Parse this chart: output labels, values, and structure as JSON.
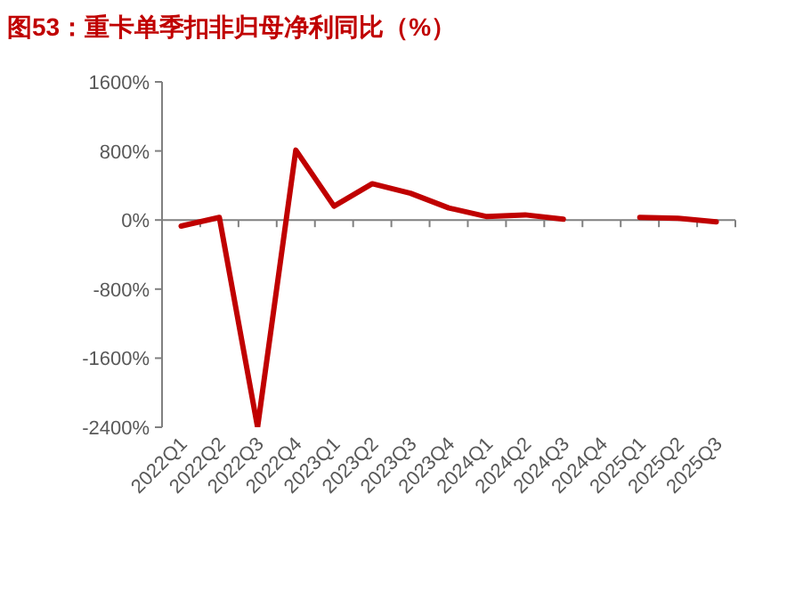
{
  "chart_data": {
    "type": "line",
    "title": "图53：重卡单季扣非归母净利同比（%）",
    "categories": [
      "2022Q1",
      "2022Q2",
      "2022Q3",
      "2022Q4",
      "2023Q1",
      "2023Q2",
      "2023Q3",
      "2023Q4",
      "2024Q1",
      "2024Q2",
      "2024Q3",
      "2024Q4",
      "2025Q1",
      "2025Q2",
      "2025Q3"
    ],
    "series": [
      {
        "color": "#c00000",
        "values": [
          -70,
          30,
          -2400,
          810,
          160,
          420,
          310,
          140,
          40,
          60,
          10,
          null,
          30,
          20,
          -20
        ]
      }
    ],
    "ylim": [
      -2400,
      1600
    ],
    "yticks": [
      {
        "value": -2400,
        "label": "-2400%"
      },
      {
        "value": -1600,
        "label": "-1600%"
      },
      {
        "value": -800,
        "label": "-800%"
      },
      {
        "value": 0,
        "label": "0%"
      },
      {
        "value": 800,
        "label": "800%"
      },
      {
        "value": 1600,
        "label": "1600%"
      }
    ],
    "marker": "none",
    "line_style": "solid"
  }
}
